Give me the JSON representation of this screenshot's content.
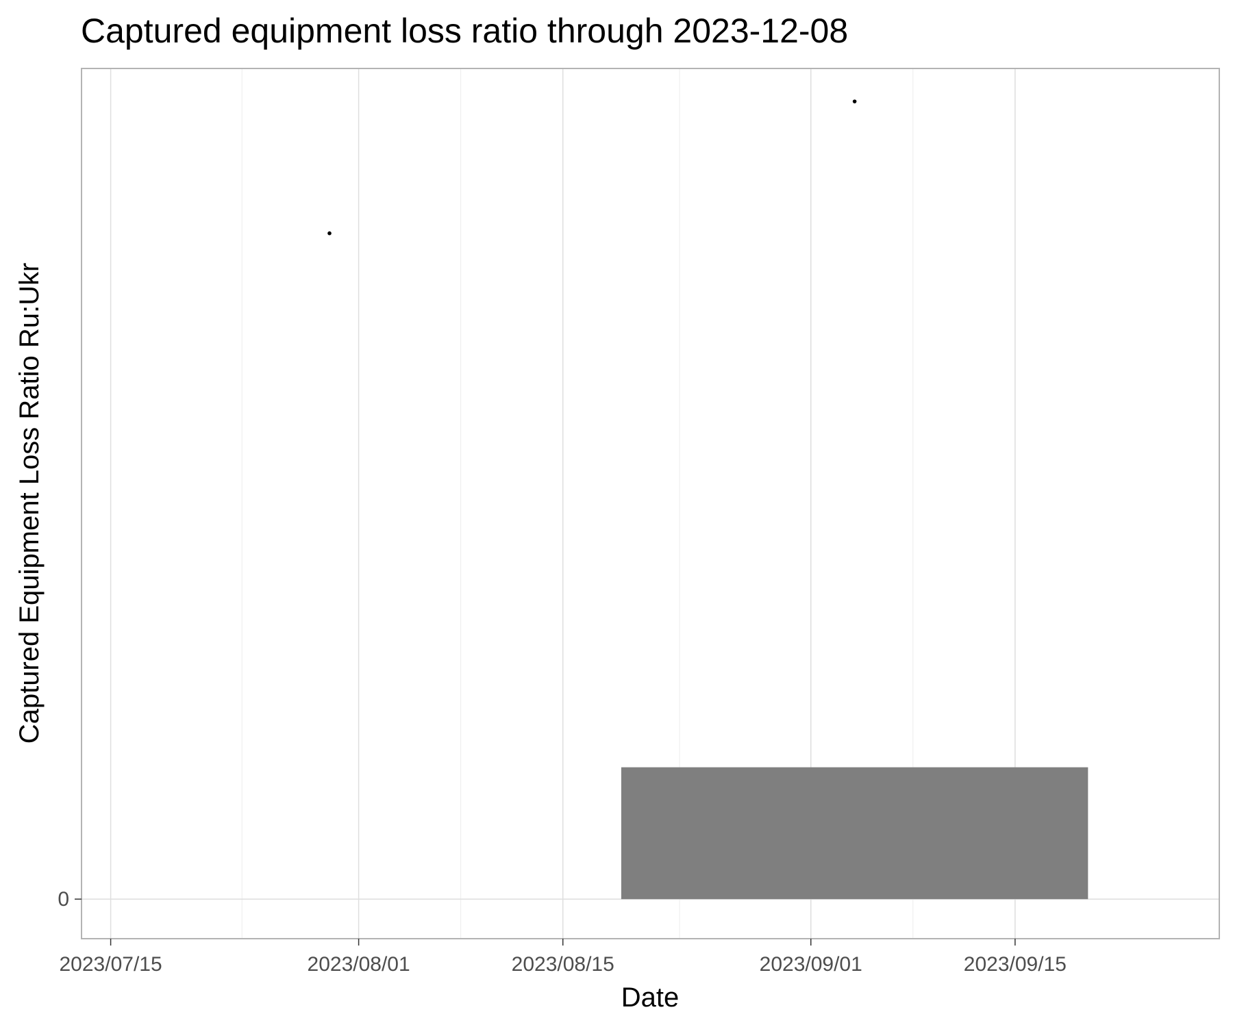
{
  "chart_data": {
    "type": "scatter",
    "title": "Captured equipment loss ratio through 2023-12-08",
    "xlabel": "Date",
    "ylabel": "Captured Equipment Loss Ratio Ru:Ukr",
    "x_axis": {
      "kind": "date",
      "range": [
        "2023-07-13",
        "2023-09-29"
      ],
      "ticks": [
        {
          "date": "2023-07-15",
          "label": "2023/07/15"
        },
        {
          "date": "2023-08-01",
          "label": "2023/08/01"
        },
        {
          "date": "2023-08-15",
          "label": "2023/08/15"
        },
        {
          "date": "2023-09-01",
          "label": "2023/09/01"
        },
        {
          "date": "2023-09-15",
          "label": "2023/09/15"
        }
      ],
      "minor_ticks": [
        "2023-07-24",
        "2023-08-08",
        "2023-08-23",
        "2023-09-08"
      ]
    },
    "y_axis": {
      "range": [
        -0.3,
        6.3
      ],
      "ticks": [
        {
          "value": 0,
          "label": "0"
        }
      ]
    },
    "points": [
      {
        "x": "2023-07-30",
        "y": 5.05
      },
      {
        "x": "2023-09-04",
        "y": 6.05
      }
    ],
    "bars": [
      {
        "x_start": "2023-08-19",
        "x_end": "2023-09-20",
        "y": 1.0
      }
    ],
    "grid": true,
    "legend": "none",
    "colors": {
      "bar_fill": "#7f7f7f",
      "point": "#000000",
      "grid_major": "#dedede",
      "grid_minor": "#ececec",
      "panel_border": "#b3b3b3"
    }
  }
}
